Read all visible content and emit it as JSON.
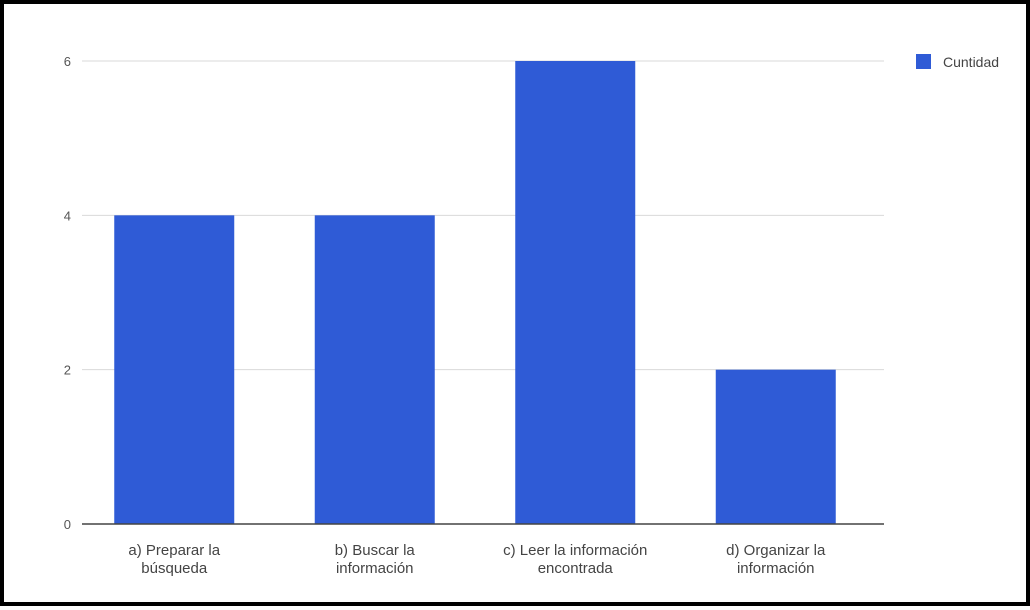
{
  "chart_data": {
    "type": "bar",
    "categories": [
      [
        "a) Preparar la",
        "búsqueda"
      ],
      [
        "b) Buscar la",
        "información"
      ],
      [
        "c) Leer la información",
        "encontrada"
      ],
      [
        "d) Organizar la",
        "información"
      ]
    ],
    "series": [
      {
        "name": "Cuntidad",
        "values": [
          4,
          4,
          6,
          2
        ],
        "color": "#2f5bd6"
      }
    ],
    "y_ticks": [
      "0",
      "2",
      "4",
      "6"
    ],
    "ylim": [
      0,
      6
    ],
    "grid": true,
    "legend_position": "top-right",
    "title": "",
    "xlabel": "",
    "ylabel": ""
  }
}
